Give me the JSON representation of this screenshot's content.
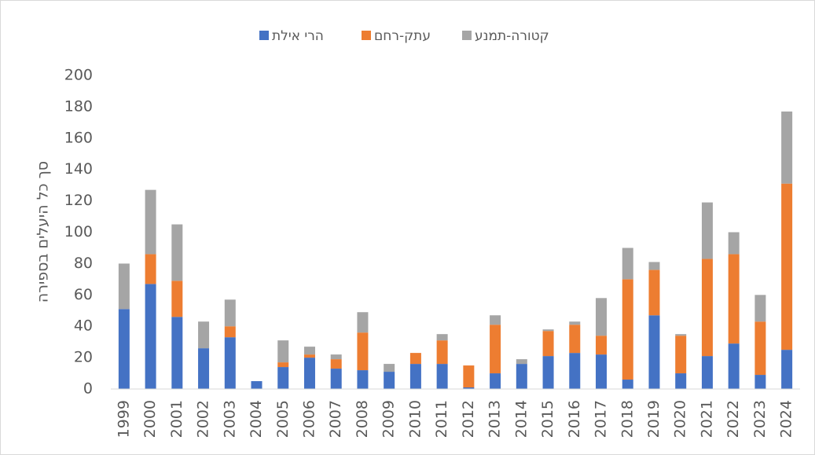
{
  "chart_data": {
    "type": "stacked_bar",
    "y_label": "סך כל היעלים בספירה",
    "categories": [
      "1999",
      "2000",
      "2001",
      "2002",
      "2003",
      "2004",
      "2005",
      "2006",
      "2007",
      "2008",
      "2009",
      "2010",
      "2011",
      "2012",
      "2013",
      "2014",
      "2015",
      "2016",
      "2017",
      "2018",
      "2019",
      "2020",
      "2021",
      "2022",
      "2023",
      "2024"
    ],
    "series": [
      {
        "name": "הרי אילת",
        "color": "#4472c4",
        "values": [
          51,
          67,
          46,
          26,
          33,
          5,
          14,
          20,
          13,
          12,
          11,
          16,
          16,
          1,
          10,
          16,
          21,
          23,
          22,
          6,
          47,
          10,
          21,
          29,
          9,
          25
        ]
      },
      {
        "name": "עתק-רחם",
        "color": "#ed7d31",
        "values": [
          0,
          19,
          23,
          0,
          7,
          0,
          3,
          2,
          6,
          24,
          0,
          7,
          15,
          14,
          31,
          0,
          16,
          18,
          12,
          64,
          29,
          24,
          62,
          57,
          34,
          106
        ]
      },
      {
        "name": "קטורה-תמנע",
        "color": "#a5a5a5",
        "values": [
          29,
          41,
          36,
          17,
          17,
          0,
          14,
          5,
          3,
          13,
          5,
          0,
          4,
          0,
          6,
          3,
          1,
          2,
          24,
          20,
          5,
          1,
          36,
          14,
          17,
          46
        ]
      }
    ],
    "ylim": [
      0,
      200
    ],
    "yticks": [
      0,
      20,
      40,
      60,
      80,
      100,
      120,
      140,
      160,
      180,
      200
    ],
    "grid": false
  }
}
